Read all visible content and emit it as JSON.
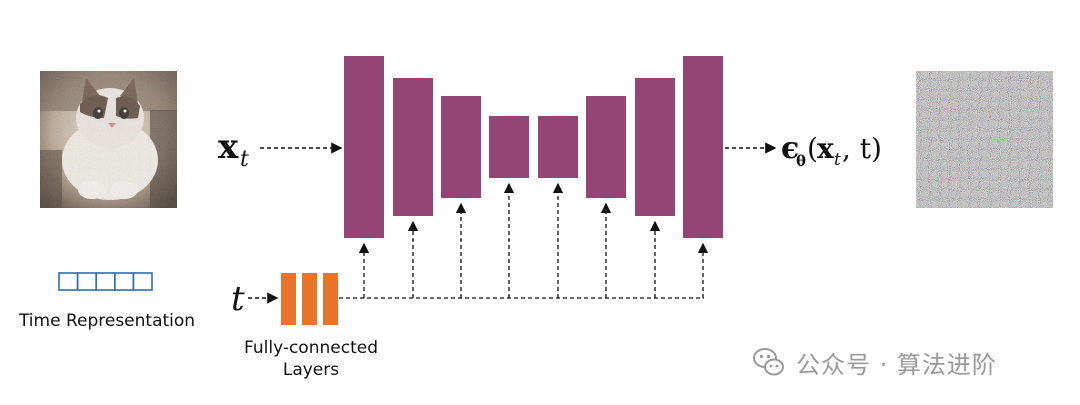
{
  "diagram": {
    "input_label_main": "x",
    "input_label_sub": "t",
    "output_eps": "ϵ",
    "output_theta": "θ",
    "output_args_open": "(",
    "output_args_x": "x",
    "output_args_sub": "t",
    "output_args_rest": ", t)",
    "time_symbol": "t",
    "time_representation_label": "Time Representation",
    "fc_label_line1": "Fully-connected",
    "fc_label_line2": "Layers"
  },
  "colors": {
    "unet_block": "#944475",
    "fc_block": "#e8732a",
    "time_cell": "#2f6db5"
  },
  "watermark": {
    "text": "公众号 · 算法进阶"
  }
}
